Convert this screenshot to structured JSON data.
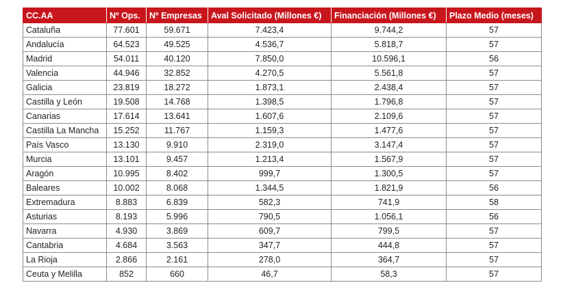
{
  "table": {
    "headers": [
      "CC.AA",
      "Nº Ops.",
      "Nº Empresas",
      "Aval Solicitado (Millones €)",
      "Financiación (Millones €)",
      "Plazo Medio (meses)"
    ],
    "rows": [
      [
        "Cataluña",
        "77.601",
        "59.671",
        "7.423,4",
        "9.744,2",
        "57"
      ],
      [
        "Andalucía",
        "64.523",
        "49.525",
        "4.536,7",
        "5.818,7",
        "57"
      ],
      [
        "Madrid",
        "54.011",
        "40.120",
        "7.850,0",
        "10.596,1",
        "56"
      ],
      [
        "Valencia",
        "44.946",
        "32.852",
        "4.270,5",
        "5.561,8",
        "57"
      ],
      [
        "Galicia",
        "23.819",
        "18.272",
        "1.873,1",
        "2.438,4",
        "57"
      ],
      [
        "Castilla y León",
        "19.508",
        "14.768",
        "1.398,5",
        "1.796,8",
        "57"
      ],
      [
        "Canarias",
        "17.614",
        "13.641",
        "1.607,6",
        "2.109,6",
        "57"
      ],
      [
        "Castilla La Mancha",
        "15.252",
        "11.767",
        "1.159,3",
        "1.477,6",
        "57"
      ],
      [
        "País Vasco",
        "13.130",
        "9.910",
        "2.319,0",
        "3.147,4",
        "57"
      ],
      [
        "Murcia",
        "13.101",
        "9.457",
        "1.213,4",
        "1.567,9",
        "57"
      ],
      [
        "Aragón",
        "10.995",
        "8.402",
        "999,7",
        "1.300,5",
        "57"
      ],
      [
        "Baleares",
        "10.002",
        "8.068",
        "1.344,5",
        "1.821,9",
        "56"
      ],
      [
        "Extremadura",
        "8.883",
        "6.839",
        "582,3",
        "741,9",
        "58"
      ],
      [
        "Asturias",
        "8.193",
        "5.996",
        "790,5",
        "1.056,1",
        "56"
      ],
      [
        "Navarra",
        "4.930",
        "3.869",
        "609,7",
        "799,5",
        "57"
      ],
      [
        "Cantabria",
        "4.684",
        "3.563",
        "347,7",
        "444,8",
        "57"
      ],
      [
        "La Rioja",
        "2.866",
        "2.161",
        "278,0",
        "364,7",
        "57"
      ],
      [
        "Ceuta y Melilla",
        "852",
        "660",
        "46,7",
        "58,3",
        "57"
      ]
    ]
  },
  "colors": {
    "header_background": "#c8161d",
    "header_text": "#ffffff",
    "cell_border": "#8a8a8a"
  }
}
